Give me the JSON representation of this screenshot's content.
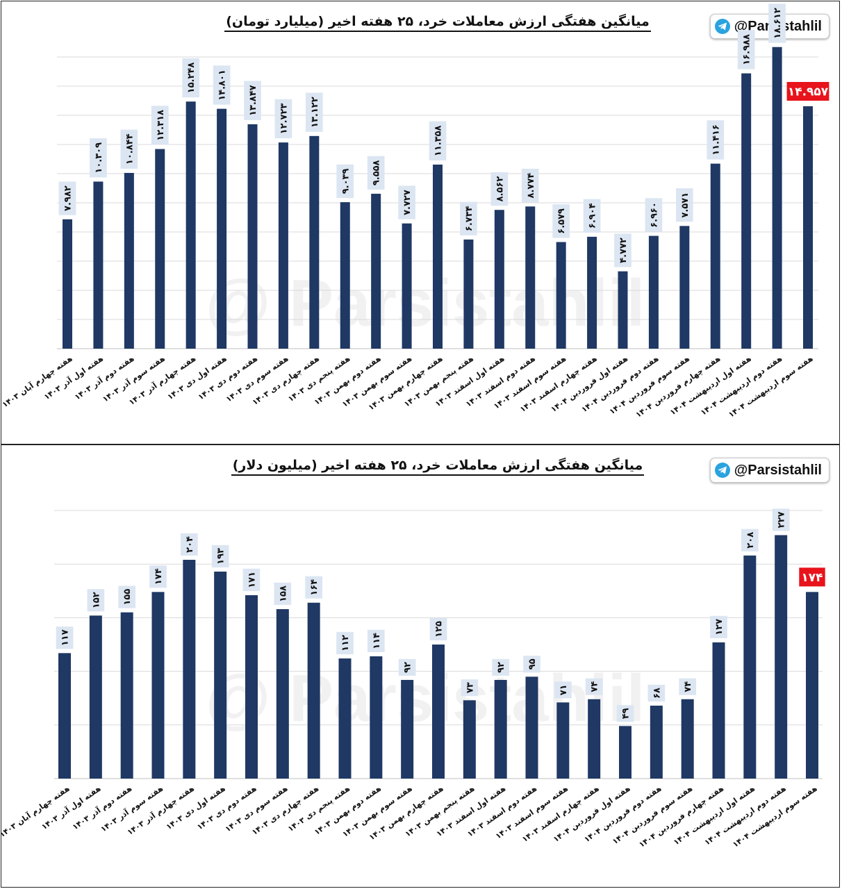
{
  "watermark": "@ Parsistahlil",
  "brand": {
    "handle": "@Parsistahlil",
    "icon": "telegram-icon",
    "icon_color": "#2AA3DF"
  },
  "colors": {
    "bar": "#1F3864",
    "highlight": "#E8131B",
    "label_bg": "#DCE6F2",
    "grid": "#D9D9D9"
  },
  "chart_data": [
    {
      "type": "bar",
      "title": "میانگین هفتگی ارزش معاملات خرد، ۲۵ هفته اخیر (میلیارد تومان)",
      "xlabel": "",
      "ylabel": "",
      "ylim": [
        0,
        18
      ],
      "grid": true,
      "highlight_last": true,
      "categories": [
        "هفته چهارم آبان ۱۴۰۳",
        "هفته اول آذر ۱۴۰۳",
        "هفته دوم آذر ۱۴۰۳",
        "هفته سوم آذر ۱۴۰۳",
        "هفته چهارم آذر ۱۴۰۳",
        "هفته اول دی ۱۴۰۳",
        "هفته دوم دی ۱۴۰۳",
        "هفته سوم دی ۱۴۰۳",
        "هفته چهارم دی ۱۴۰۳",
        "هفته پنجم دی ۱۴۰۳",
        "هفته دوم بهمن ۱۴۰۳",
        "هفته سوم بهمن ۱۴۰۳",
        "هفته چهارم بهمن ۱۴۰۳",
        "هفته پنجم بهمن ۱۴۰۳",
        "هفته اول اسفند ۱۴۰۳",
        "هفته دوم اسفند ۱۴۰۳",
        "هفته سوم اسفند ۱۴۰۳",
        "هفته چهارم اسفند ۱۴۰۳",
        "هفته اول فروردین ۱۴۰۴",
        "هفته دوم فروردین ۱۴۰۴",
        "هفته سوم فروردین ۱۴۰۴",
        "هفته چهارم فروردین ۱۴۰۴",
        "هفته اول اردیبهشت ۱۴۰۴",
        "هفته دوم اردیبهشت ۱۴۰۴",
        "هفته سوم اردیبهشت ۱۴۰۴"
      ],
      "values": [
        7.982,
        10.309,
        10.844,
        12.318,
        15.248,
        14.801,
        13.847,
        12.723,
        13.122,
        9.039,
        9.558,
        7.727,
        11.358,
        6.734,
        8.562,
        8.774,
        6.579,
        6.904,
        4.772,
        6.96,
        7.571,
        11.416,
        16.988,
        18.612,
        14.957
      ],
      "data_labels": [
        "۷.۹۸۲",
        "۱۰.۳۰۹",
        "۱۰.۸۴۴",
        "۱۲.۳۱۸",
        "۱۵.۲۴۸",
        "۱۴.۸۰۱",
        "۱۳.۸۴۷",
        "۱۲.۷۲۳",
        "۱۳.۱۲۲",
        "۹.۰۳۹",
        "۹.۵۵۸",
        "۷.۷۲۷",
        "۱۱.۳۵۸",
        "۶.۷۳۴",
        "۸.۵۶۲",
        "۸.۷۷۴",
        "۶.۵۷۹",
        "۶.۹۰۴",
        "۴.۷۷۲",
        "۶.۹۶۰",
        "۷.۵۷۱",
        "۱۱.۴۱۶",
        "۱۶.۹۸۸",
        "۱۸.۶۱۲",
        "۱۴.۹۵۷"
      ]
    },
    {
      "type": "bar",
      "title": "میانگین هفتگی ارزش معاملات خرد، ۲۵ هفته اخیر (میلیون دلار)",
      "xlabel": "",
      "ylabel": "",
      "ylim": [
        0,
        250
      ],
      "grid": true,
      "highlight_last": true,
      "categories": [
        "هفته چهارم آبان ۱۴۰۳",
        "هفته اول آذر ۱۴۰۳",
        "هفته دوم آذر ۱۴۰۳",
        "هفته سوم آذر ۱۴۰۳",
        "هفته چهارم آذر ۱۴۰۳",
        "هفته اول دی ۱۴۰۳",
        "هفته دوم دی ۱۴۰۳",
        "هفته سوم دی ۱۴۰۳",
        "هفته چهارم دی ۱۴۰۳",
        "هفته پنجم دی ۱۴۰۳",
        "هفته دوم بهمن ۱۴۰۳",
        "هفته سوم بهمن ۱۴۰۳",
        "هفته چهارم بهمن ۱۴۰۳",
        "هفته پنجم بهمن ۱۴۰۳",
        "هفته اول اسفند ۱۴۰۳",
        "هفته دوم اسفند ۱۴۰۳",
        "هفته سوم اسفند ۱۴۰۳",
        "هفته چهارم اسفند ۱۴۰۳",
        "هفته اول فروردین ۱۴۰۴",
        "هفته دوم فروردین ۱۴۰۴",
        "هفته سوم فروردین ۱۴۰۴",
        "هفته چهارم فروردین ۱۴۰۴",
        "هفته اول اردیبهشت ۱۴۰۴",
        "هفته دوم اردیبهشت ۱۴۰۴",
        "هفته سوم اردیبهشت ۱۴۰۴"
      ],
      "values": [
        117,
        152,
        155,
        174,
        204,
        193,
        171,
        158,
        164,
        112,
        114,
        92,
        125,
        73,
        92,
        95,
        71,
        74,
        49,
        68,
        74,
        127,
        208,
        227,
        174
      ],
      "data_labels": [
        "۱۱۷",
        "۱۵۲",
        "۱۵۵",
        "۱۷۴",
        "۲۰۴",
        "۱۹۳",
        "۱۷۱",
        "۱۵۸",
        "۱۶۴",
        "۱۱۲",
        "۱۱۴",
        "۹۲",
        "۱۲۵",
        "۷۳",
        "۹۲",
        "۹۵",
        "۷۱",
        "۷۴",
        "۴۹",
        "۶۸",
        "۷۴",
        "۱۲۷",
        "۲۰۸",
        "۲۲۷",
        "۱۷۴"
      ]
    }
  ]
}
